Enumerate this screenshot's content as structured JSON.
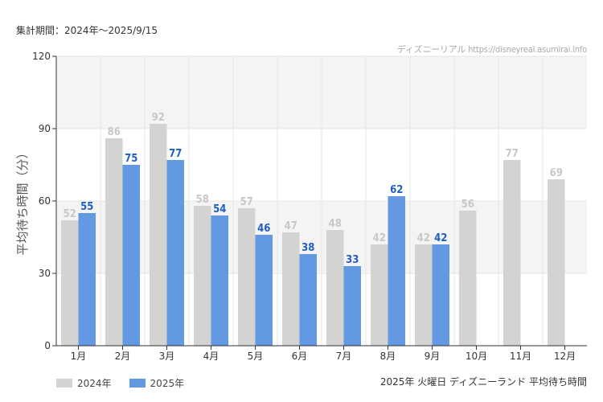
{
  "period_label": "集計期間：2024年〜2025/9/15",
  "watermark": "ディズニーリアル https://disneyreal.asumirai.info",
  "chart_title": "2025年 火曜日 ディズニーランド 平均待ち時間",
  "colors": {
    "series_2024": "#d3d3d1",
    "series_2025": "#6399e3",
    "label_2024": "#c8c8c8",
    "label_2025": "#1f5fbf",
    "band": "#f4f4f4",
    "grid": "#e6e6e6",
    "axis": "#333333"
  },
  "chart_data": {
    "type": "bar",
    "ylabel": "平均待ち時間（分）",
    "ylim": [
      0,
      120
    ],
    "yticks": [
      0,
      30,
      60,
      90,
      120
    ],
    "categories": [
      "1月",
      "2月",
      "3月",
      "4月",
      "5月",
      "6月",
      "7月",
      "8月",
      "9月",
      "10月",
      "11月",
      "12月"
    ],
    "series": [
      {
        "name": "2024年",
        "values": [
          52,
          86,
          92,
          58,
          57,
          47,
          48,
          42,
          42,
          56,
          77,
          69
        ]
      },
      {
        "name": "2025年",
        "values": [
          55,
          75,
          77,
          54,
          46,
          38,
          33,
          62,
          42,
          null,
          null,
          null
        ]
      }
    ],
    "legend": "bottom-left",
    "grid": true
  }
}
